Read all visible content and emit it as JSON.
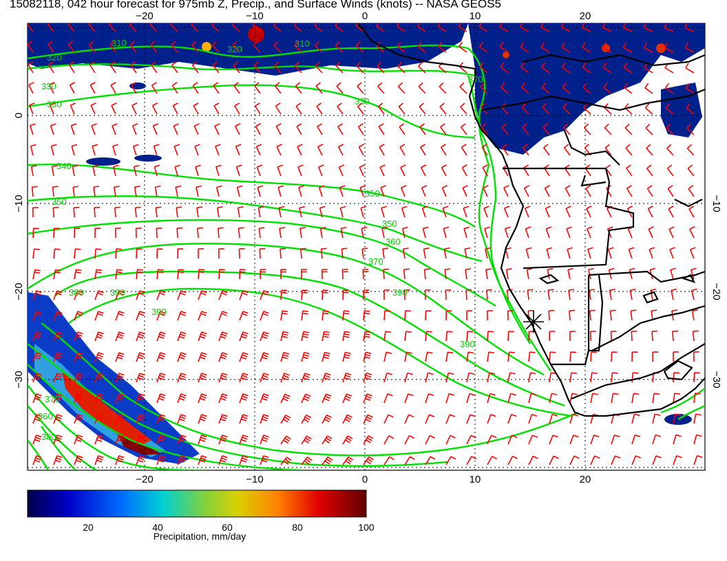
{
  "title": "15082118, 042 hour forecast for 975mb Z, Precip., and Surface Winds (knots) -- NASA GEOS5",
  "axes": {
    "lon_ticks_top": [
      "−20",
      "−10",
      "0",
      "10",
      "20"
    ],
    "lon_ticks_bottom": [
      "−20",
      "−10",
      "0",
      "10",
      "20"
    ],
    "lat_ticks_left": [
      "0",
      "−10",
      "−20",
      "−30"
    ],
    "lat_ticks_right": [
      "−10",
      "−20",
      "−30"
    ]
  },
  "contour_labels": [
    "310",
    "320",
    "320",
    "330",
    "330",
    "340",
    "350",
    "350",
    "350",
    "360",
    "370",
    "380",
    "390",
    "390",
    "390",
    "390",
    "370",
    "380",
    "360",
    "310",
    "330",
    "370"
  ],
  "colorbar": {
    "ticks": [
      "20",
      "40",
      "60",
      "80",
      "100"
    ],
    "label": "Precipitation, mm/day"
  },
  "colors": {
    "contour": "#00e000",
    "wind_barb": "#ff0000",
    "coast": "#000000",
    "precip_low": "#000080",
    "precip_high": "#800000"
  }
}
